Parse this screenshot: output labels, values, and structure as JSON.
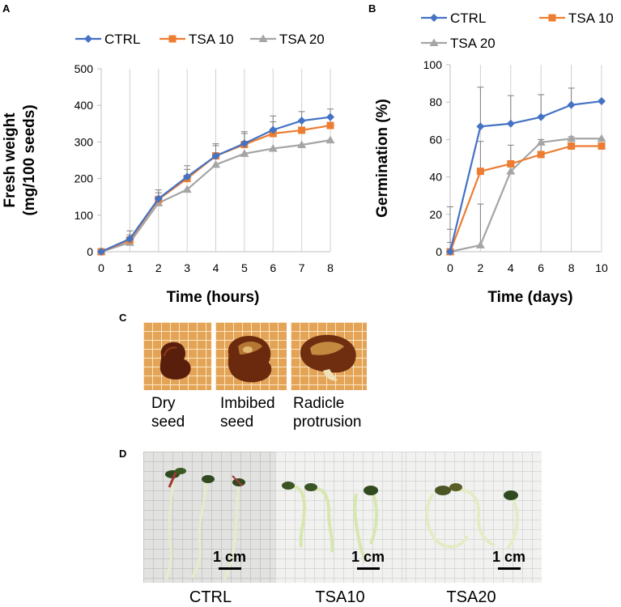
{
  "chart_data": [
    {
      "panel": "A",
      "type": "line",
      "xlabel": "Time (hours)",
      "ylabel_line1": "Fresh weight",
      "ylabel_line2": "(mg/100 seeds)",
      "xlim": [
        0,
        8
      ],
      "ylim": [
        0,
        500
      ],
      "xticks": [
        0,
        1,
        2,
        3,
        4,
        5,
        6,
        7,
        8
      ],
      "yticks": [
        0,
        100,
        200,
        300,
        400,
        500
      ],
      "grid": "vertical",
      "legend": "top",
      "x": [
        0,
        1,
        2,
        3,
        4,
        5,
        6,
        7,
        8
      ],
      "series": [
        {
          "name": "CTRL",
          "color": "#4472c4",
          "marker": "diamond",
          "values": [
            0,
            35,
            145,
            205,
            262,
            296,
            333,
            358,
            368
          ],
          "errors": [
            3,
            22,
            24,
            30,
            33,
            32,
            38,
            25,
            22
          ]
        },
        {
          "name": "TSA 10",
          "color": "#ed7d31",
          "marker": "square",
          "values": [
            0,
            32,
            143,
            200,
            262,
            293,
            323,
            332,
            345
          ],
          "errors": [
            3,
            14,
            18,
            25,
            28,
            30,
            32,
            26,
            22
          ]
        },
        {
          "name": "TSA 20",
          "color": "#a5a5a5",
          "marker": "triangle",
          "values": [
            0,
            25,
            133,
            170,
            238,
            268,
            282,
            292,
            305
          ],
          "errors": [
            3,
            0,
            0,
            0,
            0,
            0,
            0,
            0,
            0
          ]
        }
      ]
    },
    {
      "panel": "B",
      "type": "line",
      "xlabel": "Time (days)",
      "ylabel": "Germination (%)",
      "xlim": [
        0,
        10
      ],
      "ylim": [
        0,
        100
      ],
      "xticks": [
        0,
        2,
        4,
        6,
        8,
        10
      ],
      "yticks": [
        0,
        20,
        40,
        60,
        80,
        100
      ],
      "grid": "vertical",
      "legend": "top",
      "x": [
        0,
        2,
        4,
        6,
        8,
        10
      ],
      "series": [
        {
          "name": "CTRL",
          "color": "#4472c4",
          "marker": "diamond",
          "values": [
            0,
            67,
            68.5,
            72,
            78.5,
            80.5
          ],
          "errors": [
            24,
            21,
            15,
            12,
            9,
            0
          ]
        },
        {
          "name": "TSA 10",
          "color": "#ed7d31",
          "marker": "square",
          "values": [
            0,
            43,
            47,
            52,
            56.5,
            56.5
          ],
          "errors": [
            12,
            16,
            10,
            8,
            5,
            0
          ]
        },
        {
          "name": "TSA 20",
          "color": "#a5a5a5",
          "marker": "triangle",
          "values": [
            0,
            3.5,
            43,
            58.5,
            60.5,
            60.5
          ],
          "errors": [
            5,
            22,
            0,
            0,
            0,
            0
          ]
        }
      ]
    }
  ],
  "panels": {
    "a": "A",
    "b": "B",
    "c": "C",
    "d": "D"
  },
  "seed_captions": [
    {
      "line1": "Dry",
      "line2": "seed"
    },
    {
      "line1": "Imbibed",
      "line2": "seed"
    },
    {
      "line1": "Radicle",
      "line2": "protrusion"
    }
  ],
  "seedling_labels": [
    "CTRL",
    "TSA10",
    "TSA20"
  ],
  "scale_bar": "1 cm"
}
